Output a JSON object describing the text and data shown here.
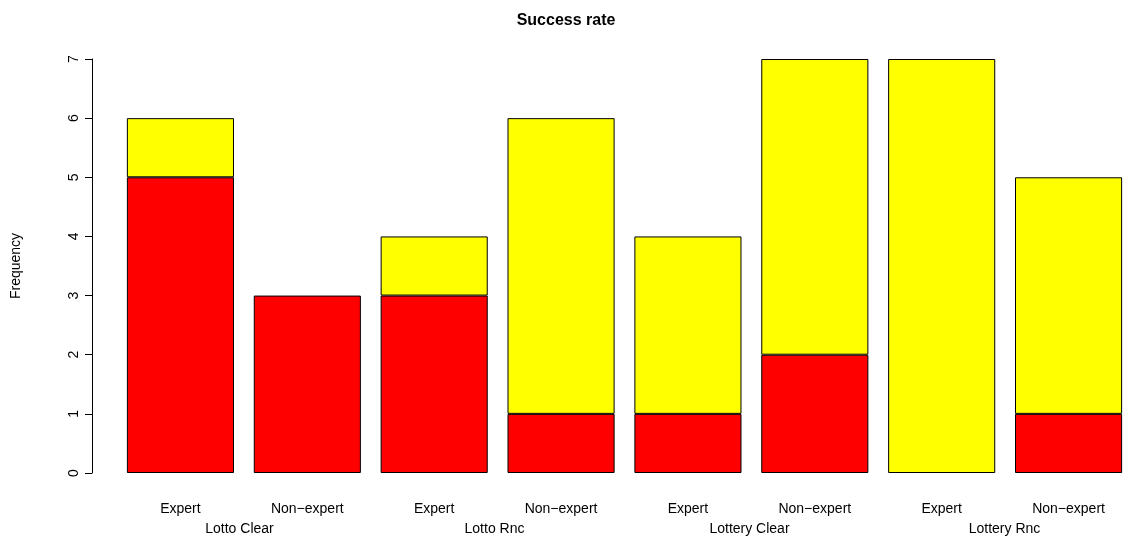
{
  "chart_data": {
    "type": "bar",
    "title": "Success rate",
    "ylabel": "Frequency",
    "stacked": true,
    "categories": [
      "Expert",
      "Non−expert",
      "Expert",
      "Non−expert",
      "Expert",
      "Non−expert",
      "Expert",
      "Non−expert"
    ],
    "series": [
      {
        "color": "#ff0000",
        "values": [
          5,
          3,
          3,
          1,
          1,
          2,
          0,
          1
        ]
      },
      {
        "color": "#ffff00",
        "values": [
          1,
          0,
          1,
          5,
          3,
          5,
          7,
          4
        ]
      }
    ],
    "ylim": [
      0,
      7
    ],
    "yticks": [
      0,
      1,
      2,
      3,
      4,
      5,
      6,
      7
    ],
    "annotations": [
      "Lotto Clear",
      "Lotto Rnc",
      "Lottery Clear",
      "Lottery Rnc"
    ]
  }
}
